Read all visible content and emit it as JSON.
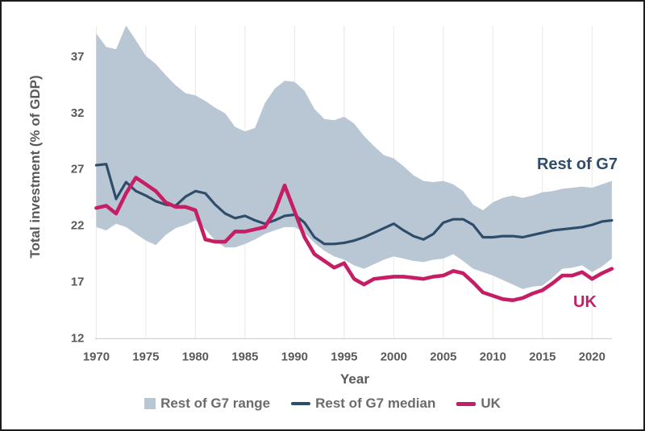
{
  "chart_data": {
    "type": "area",
    "title": "",
    "xlabel": "Year",
    "ylabel": "Total investment (% of GDP)",
    "xlim": [
      1970,
      2022
    ],
    "ylim": [
      12,
      39.7
    ],
    "xticks": [
      1970,
      1975,
      1980,
      1985,
      1990,
      1995,
      2000,
      2005,
      2010,
      2015,
      2020
    ],
    "yticks": [
      12,
      17,
      22,
      27,
      32,
      37
    ],
    "grid": "vertical-only",
    "legend_position": "bottom-center",
    "x": [
      1970,
      1971,
      1972,
      1973,
      1974,
      1975,
      1976,
      1977,
      1978,
      1979,
      1980,
      1981,
      1982,
      1983,
      1984,
      1985,
      1986,
      1987,
      1988,
      1989,
      1990,
      1991,
      1992,
      1993,
      1994,
      1995,
      1996,
      1997,
      1998,
      1999,
      2000,
      2001,
      2002,
      2003,
      2004,
      2005,
      2006,
      2007,
      2008,
      2009,
      2010,
      2011,
      2012,
      2013,
      2014,
      2015,
      2016,
      2017,
      2018,
      2019,
      2020,
      2021,
      2022
    ],
    "series": [
      {
        "name": "Rest of G7 range",
        "type": "band",
        "color": "#b9c6d3",
        "max": [
          39.0,
          37.8,
          37.6,
          39.7,
          38.4,
          37.0,
          36.3,
          35.3,
          34.4,
          33.7,
          33.5,
          33.0,
          32.4,
          31.9,
          30.7,
          30.3,
          30.6,
          32.8,
          34.1,
          34.8,
          34.7,
          33.9,
          32.3,
          31.4,
          31.3,
          31.6,
          31.0,
          29.9,
          29.0,
          28.2,
          27.9,
          27.2,
          26.4,
          25.9,
          25.8,
          25.9,
          25.6,
          25.0,
          23.8,
          23.3,
          24.0,
          24.4,
          24.6,
          24.4,
          24.6,
          24.9,
          25.0,
          25.2,
          25.3,
          25.4,
          25.3,
          25.6,
          25.9
        ],
        "min": [
          21.8,
          21.5,
          22.1,
          21.8,
          21.2,
          20.6,
          20.2,
          21.1,
          21.7,
          22.0,
          22.4,
          21.6,
          20.6,
          20.0,
          20.0,
          20.3,
          20.7,
          21.2,
          21.5,
          21.8,
          21.8,
          21.3,
          20.4,
          19.7,
          19.2,
          18.9,
          18.4,
          18.1,
          18.5,
          18.9,
          19.2,
          19.0,
          18.8,
          18.7,
          18.9,
          19.0,
          19.4,
          18.8,
          18.1,
          17.8,
          17.5,
          17.1,
          16.7,
          16.3,
          16.5,
          16.6,
          17.3,
          18.1,
          18.2,
          18.4,
          17.8,
          18.3,
          19.0
        ]
      },
      {
        "name": "Rest of G7 median",
        "type": "line",
        "color": "#2e4d6b",
        "values": [
          27.3,
          27.4,
          24.3,
          25.8,
          25.0,
          24.6,
          24.1,
          23.8,
          23.7,
          24.5,
          25.0,
          24.8,
          23.8,
          23.0,
          22.6,
          22.8,
          22.4,
          22.1,
          22.4,
          22.8,
          22.9,
          22.2,
          20.9,
          20.3,
          20.3,
          20.4,
          20.6,
          20.9,
          21.3,
          21.7,
          22.1,
          21.5,
          21.0,
          20.7,
          21.2,
          22.2,
          22.5,
          22.5,
          22.0,
          20.9,
          20.9,
          21.0,
          21.0,
          20.9,
          21.1,
          21.3,
          21.5,
          21.6,
          21.7,
          21.8,
          22.0,
          22.3,
          22.4
        ]
      },
      {
        "name": "UK",
        "type": "line",
        "color": "#c61e64",
        "values": [
          23.5,
          23.7,
          23.0,
          24.8,
          26.2,
          25.6,
          25.0,
          24.0,
          23.6,
          23.6,
          23.3,
          20.7,
          20.5,
          20.5,
          21.4,
          21.4,
          21.6,
          21.8,
          23.2,
          25.5,
          23.2,
          20.9,
          19.4,
          18.8,
          18.2,
          18.6,
          17.2,
          16.7,
          17.2,
          17.3,
          17.4,
          17.4,
          17.3,
          17.2,
          17.4,
          17.5,
          17.9,
          17.7,
          16.9,
          16.0,
          15.7,
          15.4,
          15.3,
          15.5,
          15.9,
          16.2,
          16.8,
          17.5,
          17.5,
          17.8,
          17.2,
          17.7,
          18.1
        ]
      }
    ],
    "annotations": [
      {
        "id": "rest_of_g7",
        "text": "Rest of G7",
        "color": "#2e4d6b"
      },
      {
        "id": "uk",
        "text": "UK",
        "color": "#c61e64"
      }
    ],
    "legend": [
      {
        "label": "Rest of G7 range",
        "swatch": "area",
        "color": "#b9c6d3"
      },
      {
        "label": "Rest of G7 median",
        "swatch": "line",
        "color": "#2e4d6b"
      },
      {
        "label": "UK",
        "swatch": "line-thick",
        "color": "#c61e64"
      }
    ],
    "style": {
      "gridline_color": "#e8e8e8",
      "axis_line_color": "#c9c9c9",
      "tick_label_color": "#595959",
      "legend_text_color": "#6b6b6b",
      "background": "#ffffff"
    }
  }
}
